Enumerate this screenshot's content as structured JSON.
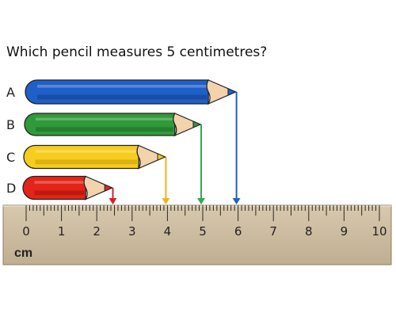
{
  "question": "Which pencil measures 5 centimetres?",
  "ruler": {
    "unit": "cm",
    "min": 0,
    "max": 10,
    "tick_labels": [
      "0",
      "1",
      "2",
      "3",
      "4",
      "5",
      "6",
      "7",
      "8",
      "9",
      "10"
    ],
    "color": "#c9b79c"
  },
  "pencils": [
    {
      "label": "A",
      "length_cm": 6,
      "color": "#1f5fc8",
      "dark": "#123f8a",
      "arrow_color": "#1f5fc8"
    },
    {
      "label": "B",
      "length_cm": 5,
      "color": "#2f9a3a",
      "dark": "#1d6a25",
      "arrow_color": "#2faa55"
    },
    {
      "label": "C",
      "length_cm": 4,
      "color": "#f6cc1e",
      "dark": "#c49d09",
      "arrow_color": "#f2b21c"
    },
    {
      "label": "D",
      "length_cm": 2.5,
      "color": "#e42418",
      "dark": "#9e130b",
      "arrow_color": "#d5202a"
    }
  ]
}
